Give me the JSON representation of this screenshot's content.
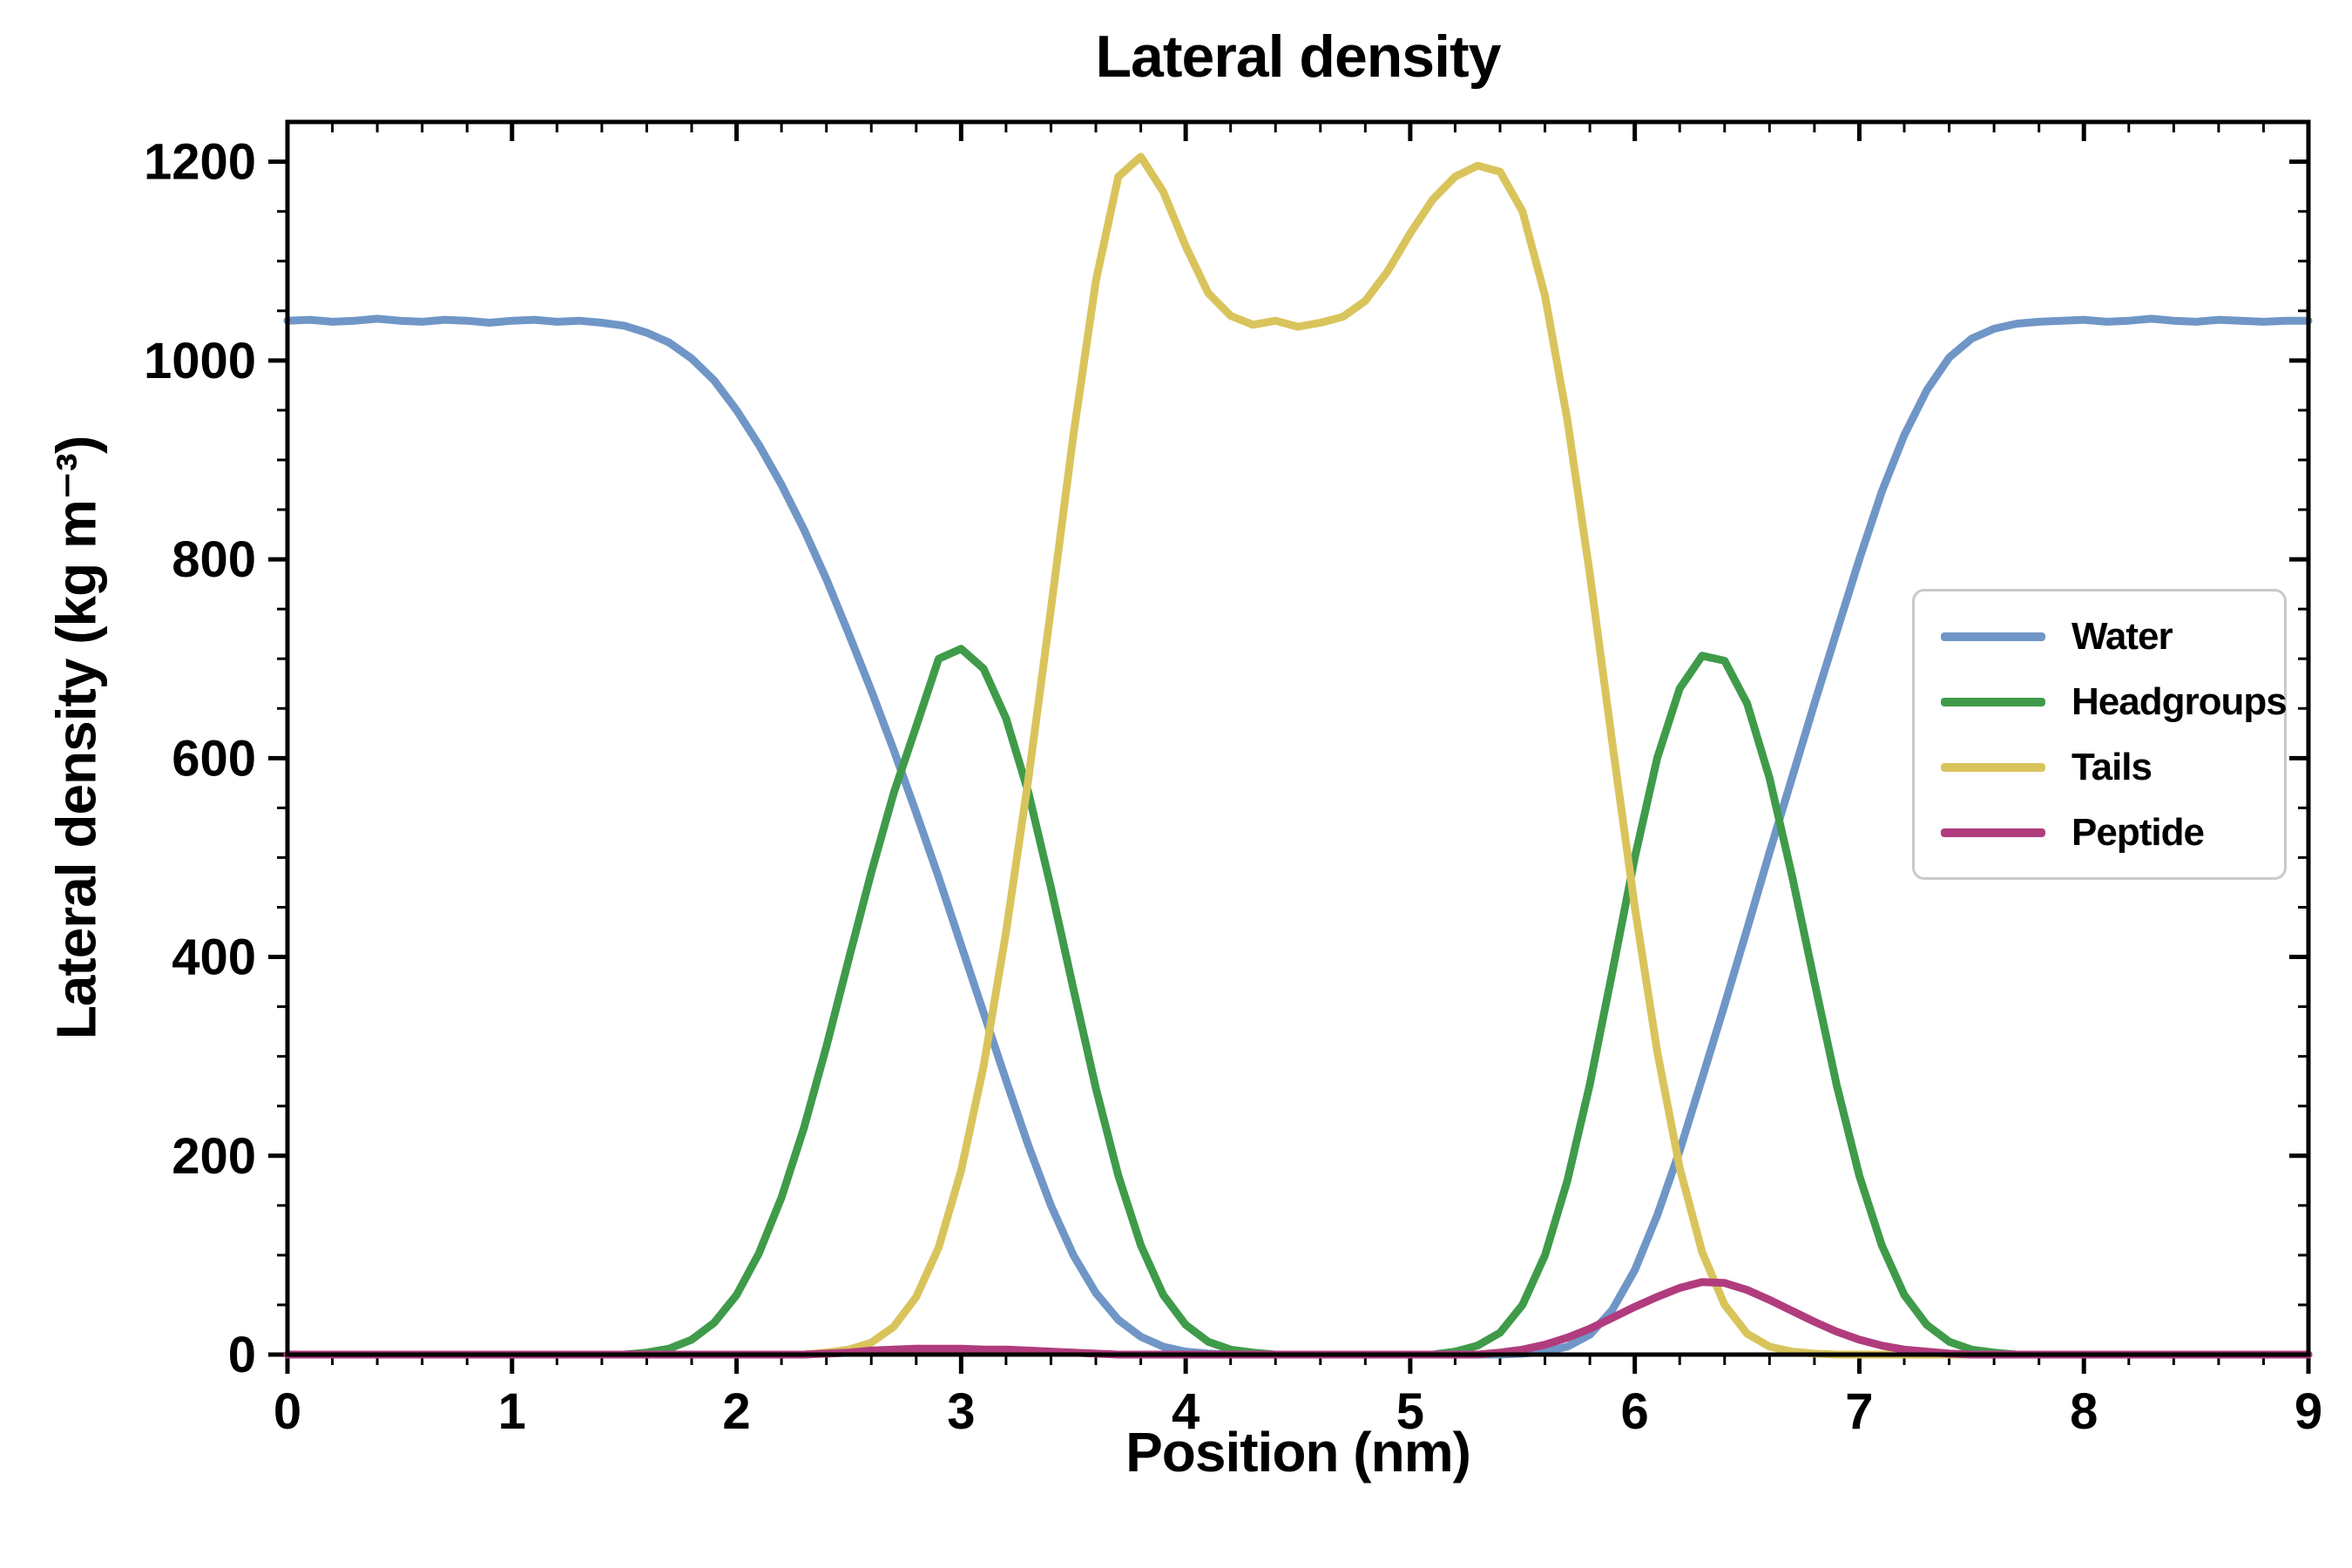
{
  "title": "Lateral density",
  "chart_data": {
    "type": "line",
    "title": "Lateral density",
    "xlabel": "Position (nm)",
    "ylabel": "Lateral density (kg m⁻³)",
    "xlim": [
      0,
      9
    ],
    "ylim": [
      0,
      1240
    ],
    "xticks": [
      0,
      1,
      2,
      3,
      4,
      5,
      6,
      7,
      8,
      9
    ],
    "yticks": [
      0,
      200,
      400,
      600,
      800,
      1000,
      1200
    ],
    "x_minor_step": 0.2,
    "y_minor_step": 50,
    "grid": false,
    "legend_position": "center right",
    "x_start": 0,
    "x_step": 0.1,
    "series": [
      {
        "name": "Water",
        "color": "#6f96c6",
        "y": [
          1040,
          1041,
          1039,
          1040,
          1042,
          1040,
          1039,
          1041,
          1040,
          1038,
          1040,
          1041,
          1039,
          1040,
          1038,
          1035,
          1028,
          1018,
          1002,
          980,
          950,
          915,
          875,
          830,
          780,
          725,
          668,
          608,
          545,
          480,
          412,
          344,
          276,
          210,
          150,
          100,
          62,
          35,
          18,
          8,
          3,
          1,
          0,
          0,
          0,
          0,
          0,
          0,
          0,
          0,
          0,
          0,
          0,
          0,
          0,
          1,
          3,
          8,
          20,
          45,
          85,
          140,
          205,
          278,
          352,
          428,
          505,
          580,
          655,
          728,
          800,
          868,
          925,
          970,
          1003,
          1022,
          1032,
          1037,
          1039,
          1040,
          1041,
          1039,
          1040,
          1042,
          1040,
          1039,
          1041,
          1040,
          1039,
          1040,
          1040
        ]
      },
      {
        "name": "Headgroups",
        "color": "#3f9b49",
        "y": [
          0,
          0,
          0,
          0,
          0,
          0,
          0,
          0,
          0,
          0,
          0,
          0,
          0,
          0,
          0,
          0,
          2,
          6,
          15,
          32,
          60,
          102,
          158,
          228,
          310,
          398,
          485,
          565,
          632,
          700,
          710,
          690,
          640,
          565,
          470,
          368,
          268,
          180,
          110,
          60,
          30,
          13,
          5,
          2,
          0,
          0,
          0,
          0,
          0,
          0,
          0,
          0,
          3,
          9,
          22,
          50,
          100,
          175,
          272,
          385,
          500,
          600,
          670,
          703,
          698,
          655,
          580,
          482,
          375,
          270,
          180,
          110,
          60,
          30,
          13,
          5,
          2,
          0,
          0,
          0,
          0,
          0,
          0,
          0,
          0,
          0,
          0,
          0,
          0,
          0,
          0
        ]
      },
      {
        "name": "Tails",
        "color": "#d9c45c",
        "y": [
          0,
          0,
          0,
          0,
          0,
          0,
          0,
          0,
          0,
          0,
          0,
          0,
          0,
          0,
          0,
          0,
          0,
          0,
          0,
          0,
          0,
          0,
          0,
          0,
          2,
          5,
          12,
          28,
          58,
          108,
          185,
          290,
          425,
          580,
          750,
          925,
          1080,
          1185,
          1205,
          1170,
          1115,
          1068,
          1045,
          1036,
          1040,
          1034,
          1038,
          1044,
          1060,
          1090,
          1128,
          1162,
          1185,
          1196,
          1190,
          1150,
          1065,
          940,
          785,
          615,
          450,
          305,
          188,
          103,
          50,
          21,
          8,
          3,
          1,
          0,
          0,
          0,
          0,
          0,
          0,
          0,
          0,
          0,
          0,
          0,
          0,
          0,
          0,
          0,
          0,
          0,
          0,
          0,
          0,
          0,
          0
        ]
      },
      {
        "name": "Peptide",
        "color": "#b13c7d",
        "y": [
          0,
          0,
          0,
          0,
          0,
          0,
          0,
          0,
          0,
          0,
          0,
          0,
          0,
          0,
          0,
          0,
          0,
          0,
          0,
          0,
          0,
          0,
          0,
          0,
          1,
          2,
          4,
          5,
          6,
          6,
          6,
          5,
          5,
          4,
          3,
          2,
          1,
          0,
          0,
          0,
          0,
          0,
          0,
          0,
          0,
          0,
          0,
          0,
          0,
          0,
          0,
          0,
          0,
          0,
          2,
          5,
          10,
          17,
          26,
          37,
          48,
          58,
          67,
          73,
          72,
          65,
          55,
          44,
          33,
          23,
          15,
          9,
          5,
          3,
          1,
          0,
          0,
          0,
          0,
          0,
          0,
          0,
          0,
          0,
          0,
          0,
          0,
          0,
          0,
          0,
          0
        ]
      }
    ]
  }
}
